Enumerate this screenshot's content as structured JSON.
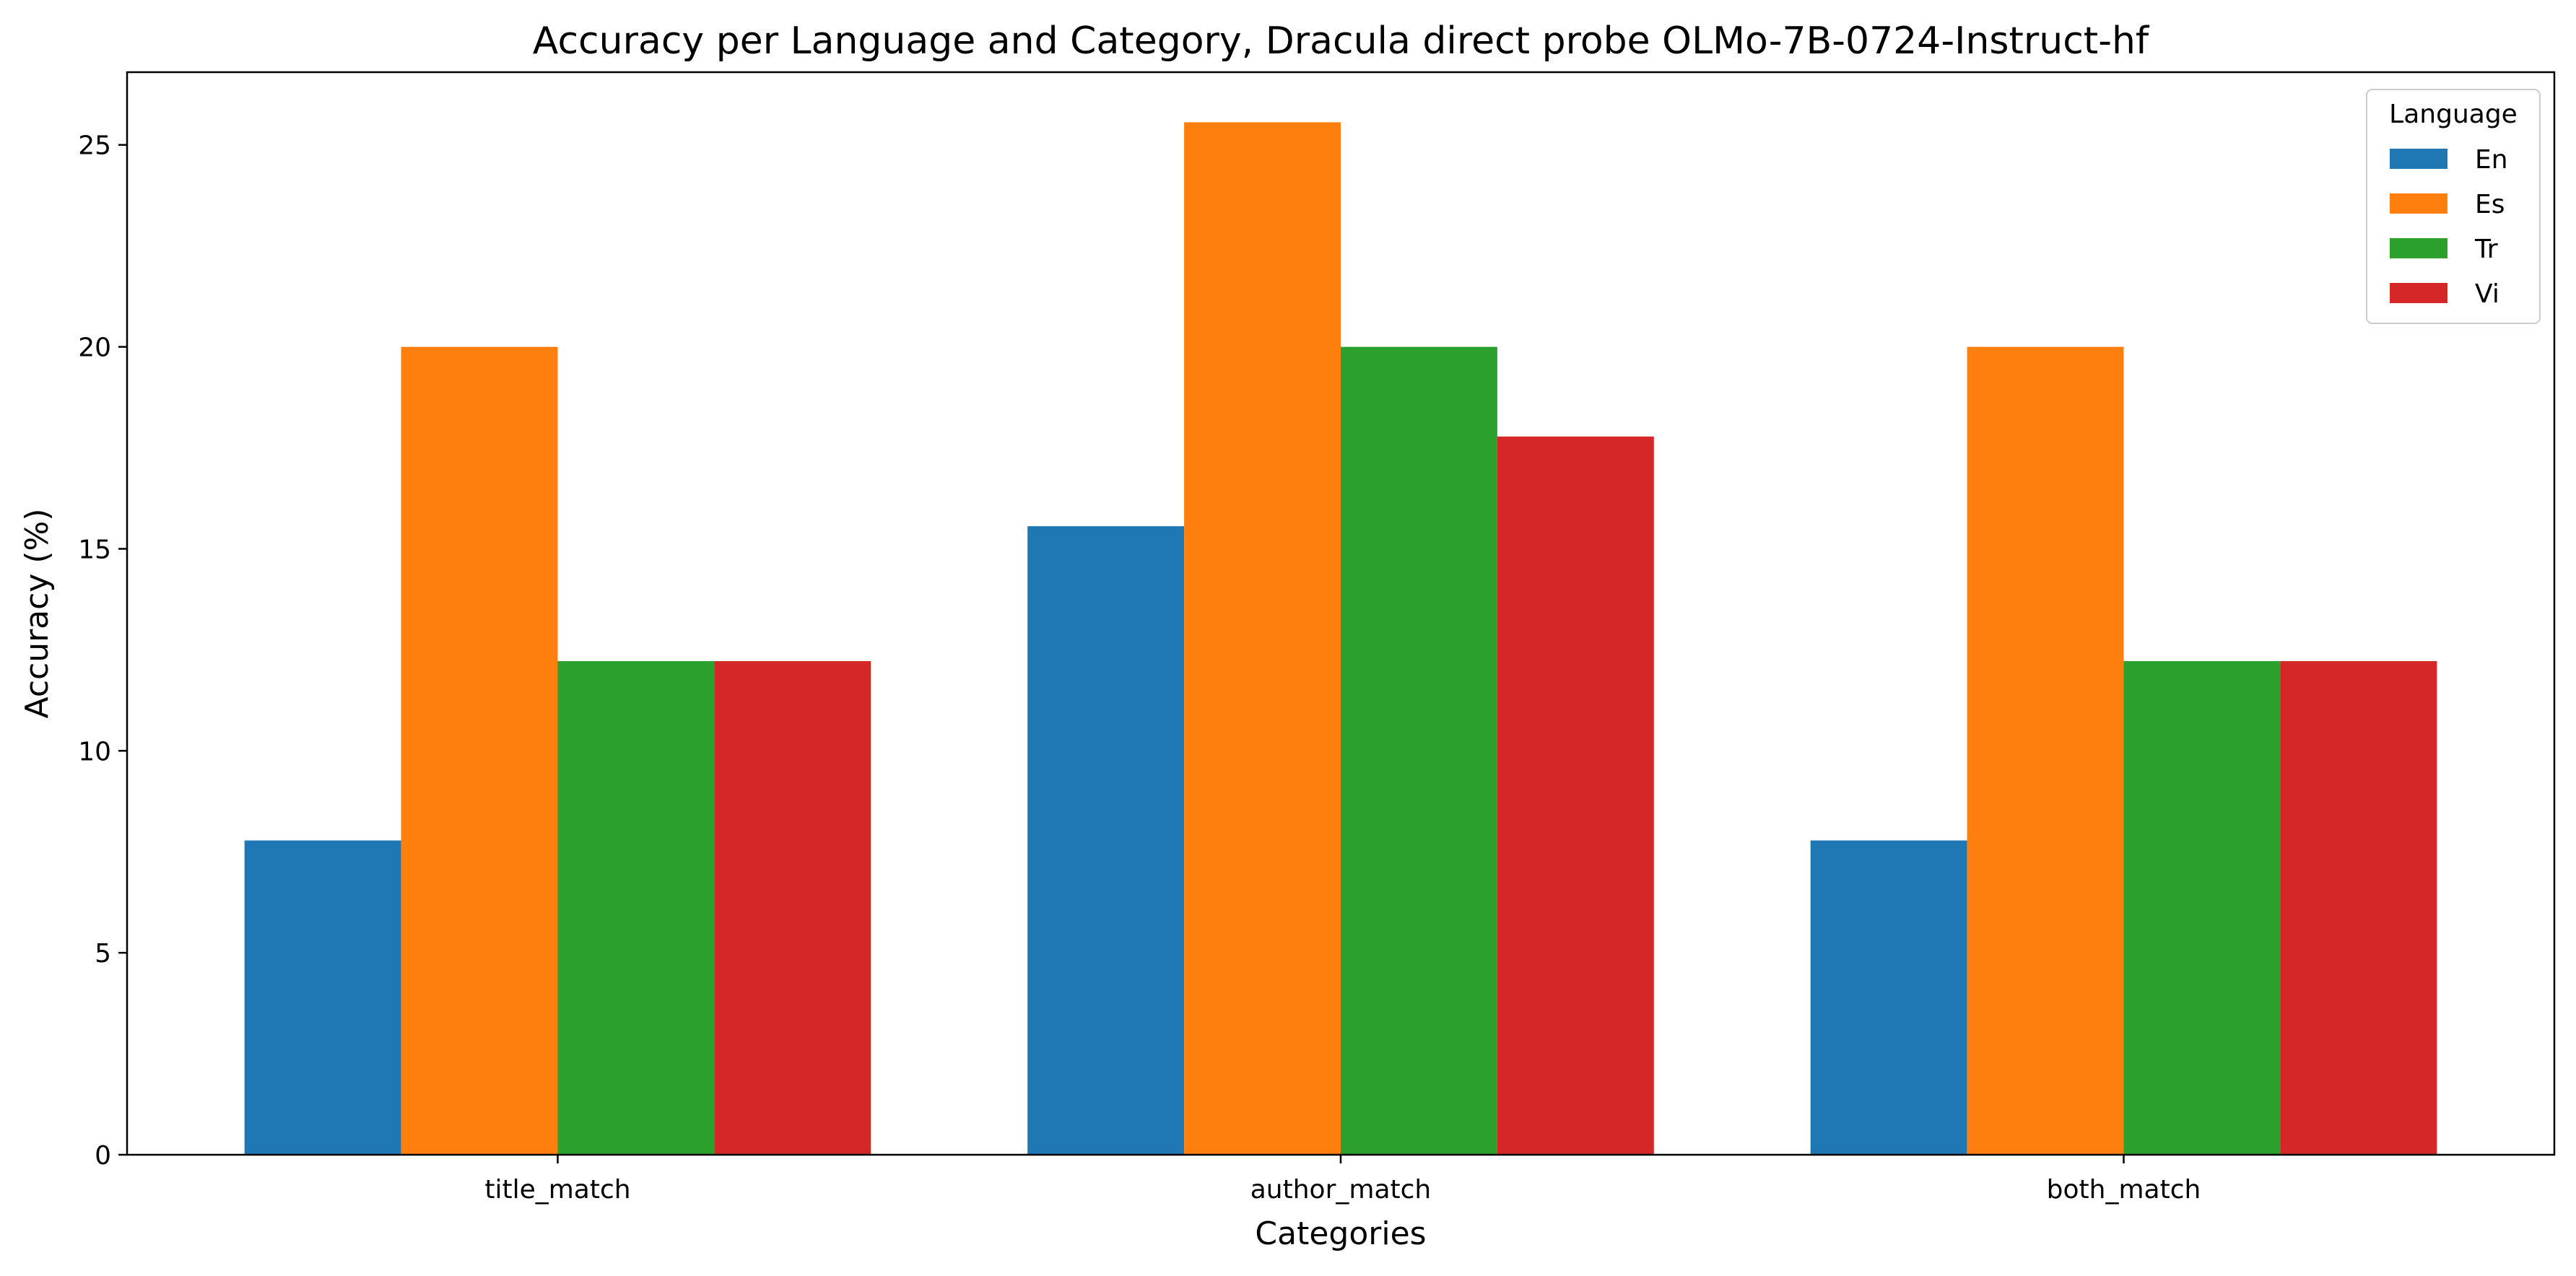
{
  "chart_data": {
    "type": "bar",
    "title": "Accuracy per Language and Category, Dracula direct probe OLMo-7B-0724-Instruct-hf",
    "xlabel": "Categories",
    "ylabel": "Accuracy (%)",
    "ylim": [
      0,
      26.8
    ],
    "yticks": [
      0,
      5,
      10,
      15,
      20,
      25
    ],
    "categories": [
      "title_match",
      "author_match",
      "both_match"
    ],
    "series": [
      {
        "name": "En",
        "color": "#1f77b4",
        "values": [
          7.78,
          15.56,
          7.78
        ]
      },
      {
        "name": "Es",
        "color": "#ff7f0e",
        "values": [
          20.0,
          25.56,
          20.0
        ]
      },
      {
        "name": "Tr",
        "color": "#2ca02c",
        "values": [
          12.22,
          20.0,
          12.22
        ]
      },
      {
        "name": "Vi",
        "color": "#d62728",
        "values": [
          12.22,
          17.78,
          12.22
        ]
      }
    ],
    "legend": {
      "title": "Language",
      "placement": "top-right"
    },
    "grid": false
  }
}
